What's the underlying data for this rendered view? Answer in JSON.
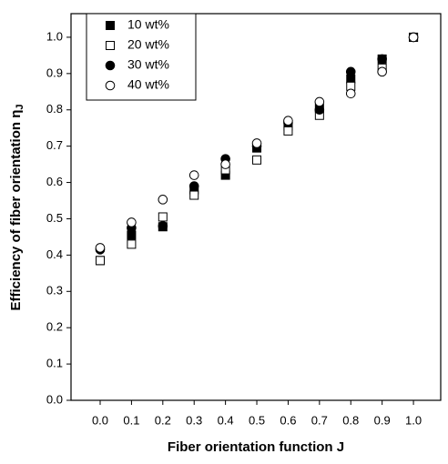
{
  "chart_data": {
    "type": "scatter",
    "xlabel": "Fiber orientation function J",
    "ylabel": "Efficiency of fiber orientation η",
    "ylabel_subscript": "J",
    "x": [
      0.0,
      0.1,
      0.2,
      0.3,
      0.4,
      0.5,
      0.6,
      0.7,
      0.8,
      0.9,
      1.0
    ],
    "series": [
      {
        "name": "10 wt%",
        "color": "#000000",
        "marker": "square",
        "filled": true,
        "values": [
          0.385,
          0.455,
          0.478,
          0.58,
          0.62,
          0.695,
          0.755,
          0.805,
          0.885,
          0.94,
          1.0
        ]
      },
      {
        "name": "20 wt%",
        "color": "#000000",
        "marker": "square",
        "filled": false,
        "values": [
          0.385,
          0.43,
          0.505,
          0.565,
          0.635,
          0.662,
          0.742,
          0.785,
          0.865,
          0.915,
          1.0
        ]
      },
      {
        "name": "30 wt%",
        "color": "#000000",
        "marker": "circle",
        "filled": true,
        "values": [
          0.415,
          0.475,
          0.48,
          0.59,
          0.665,
          0.7,
          0.765,
          0.8,
          0.905,
          0.94,
          1.0
        ]
      },
      {
        "name": "40 wt%",
        "color": "#000000",
        "marker": "circle",
        "filled": false,
        "values": [
          0.42,
          0.49,
          0.553,
          0.62,
          0.65,
          0.708,
          0.77,
          0.822,
          0.845,
          0.905,
          1.0
        ]
      }
    ],
    "xlim": [
      -0.093,
      1.087
    ],
    "ylim": [
      0,
      1.065
    ],
    "xticks": [
      {
        "value": 0,
        "label": "0.0"
      },
      0.1,
      0.2,
      0.3,
      0.4,
      0.5,
      0.6,
      0.7,
      0.8,
      0.9,
      {
        "value": 1,
        "label": "1.0"
      }
    ],
    "yticks": [
      {
        "value": 0,
        "label": "0.0"
      },
      0.1,
      0.2,
      0.3,
      0.4,
      0.5,
      0.6,
      0.7,
      0.8,
      0.9,
      {
        "value": 1,
        "label": "1.0"
      }
    ],
    "legend": "upper left"
  }
}
